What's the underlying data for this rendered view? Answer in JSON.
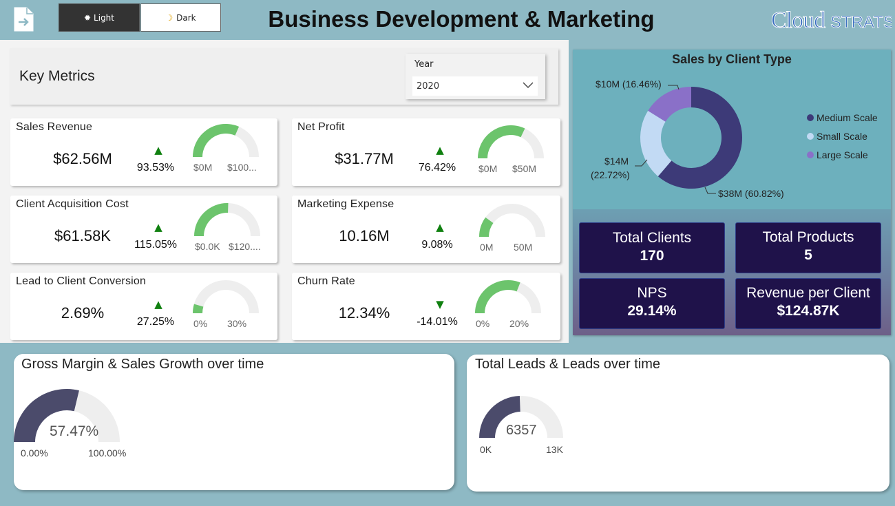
{
  "header": {
    "title": "Business Development & Marketing",
    "theme_light_label": "Light",
    "theme_dark_label": "Dark",
    "brand": "Cloudstrats"
  },
  "key_metrics": {
    "title": "Key Metrics",
    "year_label": "Year",
    "year_value": "2020"
  },
  "cards": [
    {
      "title": "Sales Revenue",
      "value": "$62.56M",
      "change": "93.53%",
      "trend": "up",
      "gauge_min": "$0M",
      "gauge_max": "$100...",
      "gauge_fill": 0.63
    },
    {
      "title": "Net Profit",
      "value": "$31.77M",
      "change": "76.42%",
      "trend": "up",
      "gauge_min": "$0M",
      "gauge_max": "$50M",
      "gauge_fill": 0.64
    },
    {
      "title": "Client Acquisition Cost",
      "value": "$61.58K",
      "change": "115.05%",
      "trend": "up",
      "gauge_min": "$0.0K",
      "gauge_max": "$120....",
      "gauge_fill": 0.51
    },
    {
      "title": "Marketing Expense",
      "value": "10.16M",
      "change": "9.08%",
      "trend": "up",
      "gauge_min": "0M",
      "gauge_max": "50M",
      "gauge_fill": 0.2
    },
    {
      "title": "Lead to Client Conversion",
      "value": "2.69%",
      "change": "27.25%",
      "trend": "up",
      "gauge_min": "0%",
      "gauge_max": "30%",
      "gauge_fill": 0.09
    },
    {
      "title": "Churn Rate",
      "value": "12.34%",
      "change": "-14.01%",
      "trend": "down",
      "gauge_min": "0%",
      "gauge_max": "20%",
      "gauge_fill": 0.62
    }
  ],
  "client_type_chart": {
    "title": "Sales by Client Type",
    "legend": [
      {
        "name": "Medium Scale",
        "color": "#3d3a78"
      },
      {
        "name": "Small Scale",
        "color": "#c2daf4"
      },
      {
        "name": "Large Scale",
        "color": "#8a70c8"
      }
    ],
    "labels": {
      "large": "$10M (16.46%)",
      "small_value": "$14M",
      "small_pct": "(22.72%)",
      "medium": "$38M (60.82%)"
    }
  },
  "kpis": [
    {
      "label": "Total Clients",
      "value": "170"
    },
    {
      "label": "Total Products",
      "value": "5"
    },
    {
      "label": "NPS",
      "value": "29.14%"
    },
    {
      "label": "Revenue per Client",
      "value": "$124.87K"
    }
  ],
  "gross_margin": {
    "title": "Gross Margin & Sales Growth over time",
    "value": "57.47%",
    "min": "0.00%",
    "max": "100.00%",
    "fill": 0.5747
  },
  "leads": {
    "title": "Total Leads & Leads over time",
    "value": "6357",
    "min": "0K",
    "max": "13K",
    "fill": 0.489
  },
  "chart_data": {
    "type": "pie",
    "title": "Sales by Client Type",
    "categories": [
      "Medium Scale",
      "Small Scale",
      "Large Scale"
    ],
    "values": [
      38,
      14,
      10
    ],
    "percent": [
      60.82,
      22.72,
      16.46
    ],
    "unit": "$M",
    "legend_position": "right"
  },
  "colors": {
    "header_bg": "#8eb9c4",
    "gauge_green": "#6cc46c",
    "gauge_dark": "#4b4b6b",
    "kpi_bg": "#1f124a",
    "trend_up": "#108010"
  }
}
